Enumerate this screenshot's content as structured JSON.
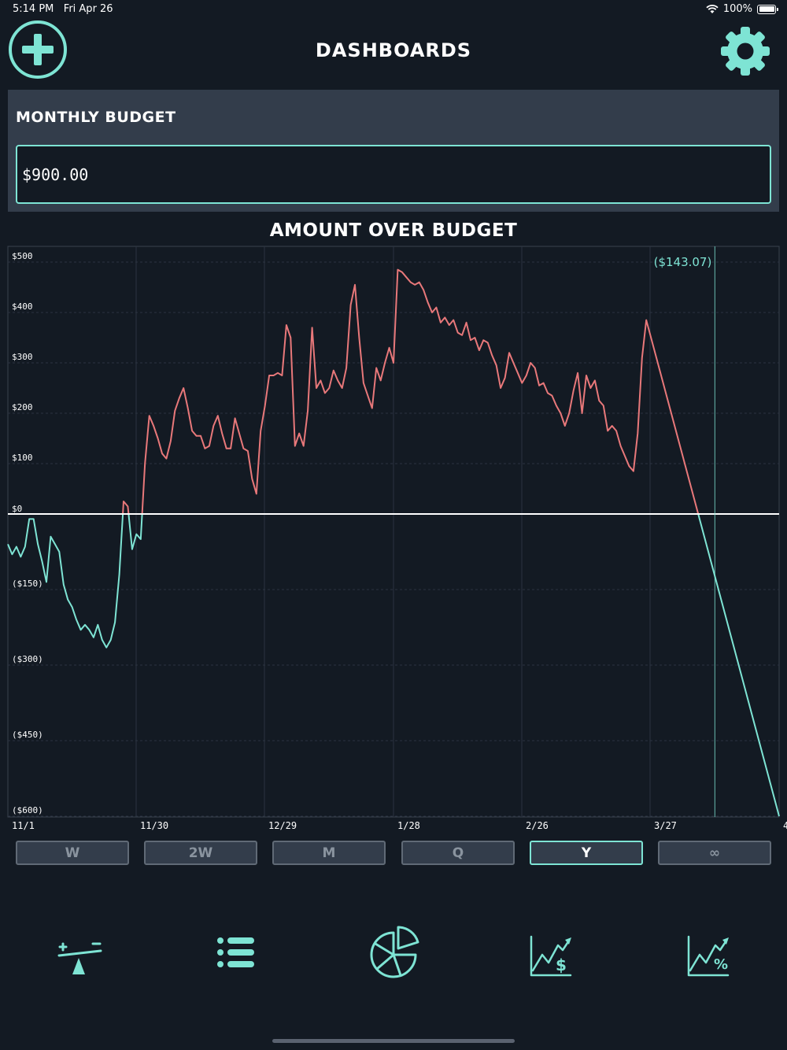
{
  "status_bar": {
    "time": "5:14 PM",
    "date": "Fri Apr 26",
    "battery": "100%"
  },
  "header": {
    "title": "DASHBOARDS",
    "add_icon": "plus-circle-icon",
    "settings_icon": "gear-icon"
  },
  "budget": {
    "label": "MONTHLY BUDGET",
    "value": "$900.00"
  },
  "colors": {
    "accent": "#7ee4d4",
    "over": "#e8787a",
    "background": "#131a23",
    "panel": "#333d4b"
  },
  "chart_data": {
    "type": "line",
    "title": "AMOUNT OVER BUDGET",
    "x_labels": [
      "11/1",
      "11/30",
      "12/29",
      "1/28",
      "2/26",
      "3/27",
      "4"
    ],
    "y_ticks": [
      {
        "value": 500,
        "label": "$500"
      },
      {
        "value": 400,
        "label": "$400"
      },
      {
        "value": 300,
        "label": "$300"
      },
      {
        "value": 200,
        "label": "$200"
      },
      {
        "value": 100,
        "label": "$100"
      },
      {
        "value": 0,
        "label": "$0"
      },
      {
        "value": -150,
        "label": "($150)"
      },
      {
        "value": -300,
        "label": "($300)"
      },
      {
        "value": -450,
        "label": "($450)"
      },
      {
        "value": -600,
        "label": "($600)"
      }
    ],
    "ylim": [
      -600,
      510
    ],
    "x_range_days": [
      0,
      180
    ],
    "threshold": 0,
    "cursor": {
      "day": 165,
      "label": "($143.07)"
    },
    "above_color": "#e8787a",
    "below_color": "#7ee4d4",
    "grid": true,
    "series": [
      {
        "x": [
          0,
          1,
          2,
          3,
          4,
          5,
          6,
          7,
          8,
          9,
          10,
          11,
          12,
          13,
          14,
          15,
          16,
          17,
          18,
          19,
          20,
          21,
          22,
          23,
          24,
          25,
          26,
          27,
          28,
          29,
          30,
          31,
          32,
          33,
          34,
          35,
          36,
          37,
          38,
          39,
          40,
          41,
          42,
          43,
          44,
          45,
          46,
          47,
          48,
          49,
          50,
          51,
          52,
          53,
          54,
          55,
          56,
          57,
          58,
          59,
          60,
          61,
          62,
          63,
          64,
          65,
          66,
          67,
          68,
          69,
          70,
          71,
          72,
          73,
          74,
          75,
          76,
          77,
          78,
          79,
          80,
          81,
          82,
          83,
          84,
          85,
          86,
          87,
          88,
          89,
          90,
          91,
          92,
          93,
          94,
          95,
          96,
          97,
          98,
          99,
          100,
          101,
          102,
          103,
          104,
          105,
          106,
          107,
          108,
          109,
          110,
          111,
          112,
          113,
          114,
          115,
          116,
          117,
          118,
          119,
          120,
          121,
          122,
          123,
          124,
          125,
          126,
          127,
          128,
          129,
          130,
          131,
          132,
          133,
          134,
          135,
          136,
          137,
          138,
          139,
          140,
          141,
          142,
          143,
          144,
          145,
          146,
          147,
          148,
          149,
          180
        ],
        "y": [
          -60,
          -80,
          -65,
          -85,
          -65,
          -10,
          -10,
          -60,
          -95,
          -135,
          -45,
          -60,
          -75,
          -140,
          -170,
          -185,
          -210,
          -230,
          -220,
          -230,
          -245,
          -220,
          -250,
          -265,
          -250,
          -215,
          -120,
          25,
          15,
          -70,
          -40,
          -50,
          100,
          195,
          175,
          150,
          120,
          110,
          145,
          205,
          230,
          250,
          210,
          165,
          155,
          155,
          130,
          135,
          175,
          195,
          160,
          130,
          130,
          190,
          160,
          130,
          125,
          70,
          40,
          165,
          215,
          275,
          275,
          280,
          275,
          375,
          350,
          135,
          160,
          135,
          205,
          370,
          250,
          265,
          240,
          250,
          285,
          265,
          250,
          290,
          415,
          455,
          350,
          260,
          235,
          210,
          290,
          265,
          300,
          330,
          300,
          485,
          480,
          470,
          460,
          455,
          460,
          445,
          420,
          400,
          410,
          380,
          390,
          375,
          385,
          360,
          355,
          380,
          345,
          350,
          325,
          345,
          340,
          315,
          295,
          250,
          270,
          320,
          300,
          280,
          260,
          275,
          300,
          290,
          255,
          260,
          240,
          235,
          215,
          200,
          175,
          200,
          245,
          280,
          200,
          275,
          250,
          265,
          225,
          215,
          165,
          175,
          165,
          135,
          115,
          95,
          85,
          160,
          310,
          385,
          -600
        ]
      }
    ]
  },
  "range_buttons": [
    {
      "label": "W",
      "active": false
    },
    {
      "label": "2W",
      "active": false
    },
    {
      "label": "M",
      "active": false
    },
    {
      "label": "Q",
      "active": false
    },
    {
      "label": "Y",
      "active": true
    },
    {
      "label": "∞",
      "active": false
    }
  ],
  "tab_bar": [
    {
      "icon": "budget-balance-icon"
    },
    {
      "icon": "list-icon"
    },
    {
      "icon": "pie-chart-icon"
    },
    {
      "icon": "dollar-trend-icon"
    },
    {
      "icon": "percent-trend-icon"
    }
  ]
}
